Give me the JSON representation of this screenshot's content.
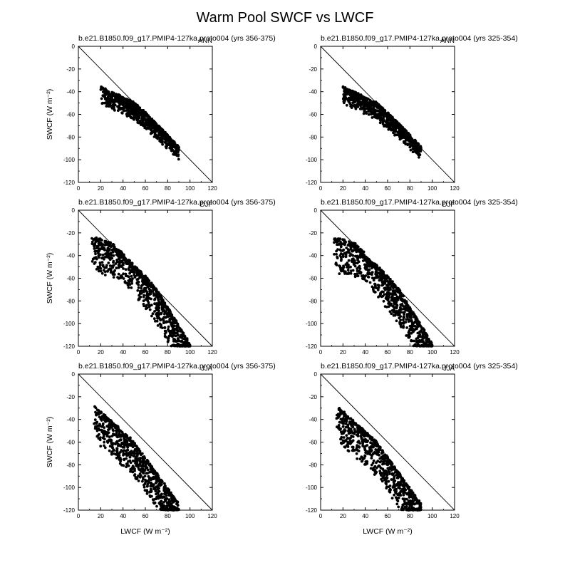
{
  "figure": {
    "title": "Warm Pool SWCF vs LWCF"
  },
  "chart_data": [
    {
      "type": "scatter",
      "title": "b.e21.B1850.f09_g17.PMIP4-127ka.proto004 (yrs 356-375)",
      "tag": "ANN",
      "xlabel": "",
      "ylabel": "SWCF (W m⁻²)",
      "xlim": [
        0,
        120
      ],
      "ylim": [
        -120,
        0
      ],
      "xticks": [
        0,
        20,
        40,
        60,
        80,
        100,
        120
      ],
      "yticks": [
        0,
        -20,
        -40,
        -60,
        -80,
        -100,
        -120
      ],
      "reference_line": {
        "x": [
          0,
          120
        ],
        "y": [
          0,
          -120
        ]
      },
      "point_model": {
        "seed": 11,
        "n": 850,
        "x_range": [
          20,
          90
        ],
        "y_min_at": [
          [
            20,
            -36
          ],
          [
            50,
            -50
          ],
          [
            90,
            -85
          ]
        ],
        "slope": -0.95,
        "spread": 14
      },
      "series": []
    },
    {
      "type": "scatter",
      "title": "b.e21.B1850.f09_g17.PMIP4-127ka.proto004 (yrs 325-354)",
      "tag": "ANN",
      "xlabel": "",
      "ylabel": "",
      "xlim": [
        0,
        120
      ],
      "ylim": [
        -120,
        0
      ],
      "xticks": [
        0,
        20,
        40,
        60,
        80,
        100,
        120
      ],
      "yticks": [
        0,
        -20,
        -40,
        -60,
        -80,
        -100,
        -120
      ],
      "reference_line": {
        "x": [
          0,
          120
        ],
        "y": [
          0,
          -120
        ]
      },
      "point_model": {
        "seed": 23,
        "n": 850,
        "x_range": [
          20,
          90
        ],
        "y_min_at": [
          [
            20,
            -36
          ],
          [
            50,
            -50
          ],
          [
            90,
            -85
          ]
        ],
        "slope": -0.95,
        "spread": 14
      },
      "series": []
    },
    {
      "type": "scatter",
      "title": "b.e21.B1850.f09_g17.PMIP4-127ka.proto004 (yrs 356-375)",
      "tag": "DJF",
      "xlabel": "",
      "ylabel": "SWCF (W m⁻²)",
      "xlim": [
        0,
        120
      ],
      "ylim": [
        -120,
        0
      ],
      "xticks": [
        0,
        20,
        40,
        60,
        80,
        100,
        120
      ],
      "yticks": [
        0,
        -20,
        -40,
        -60,
        -80,
        -100,
        -120
      ],
      "reference_line": {
        "x": [
          0,
          120
        ],
        "y": [
          0,
          -120
        ]
      },
      "point_model": {
        "seed": 37,
        "n": 900,
        "x_range": [
          12,
          100
        ],
        "y_min_at": [
          [
            12,
            -24
          ],
          [
            40,
            -32
          ],
          [
            70,
            -70
          ],
          [
            100,
            -118
          ]
        ],
        "slope": -1.3,
        "spread": 30
      },
      "series": []
    },
    {
      "type": "scatter",
      "title": "b.e21.B1850.f09_g17.PMIP4-127ka.proto004 (yrs 325-354)",
      "tag": "DJF",
      "xlabel": "",
      "ylabel": "",
      "xlim": [
        0,
        120
      ],
      "ylim": [
        -120,
        0
      ],
      "xticks": [
        0,
        20,
        40,
        60,
        80,
        100,
        120
      ],
      "yticks": [
        0,
        -20,
        -40,
        -60,
        -80,
        -100,
        -120
      ],
      "reference_line": {
        "x": [
          0,
          120
        ],
        "y": [
          0,
          -120
        ]
      },
      "point_model": {
        "seed": 41,
        "n": 900,
        "x_range": [
          12,
          100
        ],
        "y_min_at": [
          [
            12,
            -24
          ],
          [
            40,
            -32
          ],
          [
            70,
            -70
          ],
          [
            100,
            -118
          ]
        ],
        "slope": -1.3,
        "spread": 30
      },
      "series": []
    },
    {
      "type": "scatter",
      "title": "b.e21.B1850.f09_g17.PMIP4-127ka.proto004 (yrs 356-375)",
      "tag": "JJA",
      "xlabel": "LWCF (W m⁻²)",
      "ylabel": "SWCF (W m⁻²)",
      "xlim": [
        0,
        120
      ],
      "ylim": [
        -120,
        0
      ],
      "xticks": [
        0,
        20,
        40,
        60,
        80,
        100,
        120
      ],
      "yticks": [
        0,
        -20,
        -40,
        -60,
        -80,
        -100,
        -120
      ],
      "reference_line": {
        "x": [
          0,
          120
        ],
        "y": [
          0,
          -120
        ]
      },
      "point_model": {
        "seed": 53,
        "n": 800,
        "x_range": [
          14,
          90
        ],
        "y_min_at": [
          [
            14,
            -28
          ],
          [
            50,
            -60
          ],
          [
            90,
            -115
          ]
        ],
        "slope": -1.0,
        "spread": 30
      },
      "series": []
    },
    {
      "type": "scatter",
      "title": "b.e21.B1850.f09_g17.PMIP4-127ka.proto004 (yrs 325-354)",
      "tag": "JJA",
      "xlabel": "LWCF (W m⁻²)",
      "ylabel": "",
      "xlim": [
        0,
        120
      ],
      "ylim": [
        -120,
        0
      ],
      "xticks": [
        0,
        20,
        40,
        60,
        80,
        100,
        120
      ],
      "yticks": [
        0,
        -20,
        -40,
        -60,
        -80,
        -100,
        -120
      ],
      "reference_line": {
        "x": [
          0,
          120
        ],
        "y": [
          0,
          -120
        ]
      },
      "point_model": {
        "seed": 67,
        "n": 800,
        "x_range": [
          14,
          90
        ],
        "y_min_at": [
          [
            14,
            -28
          ],
          [
            50,
            -60
          ],
          [
            90,
            -115
          ]
        ],
        "slope": -1.0,
        "spread": 30
      },
      "series": []
    }
  ]
}
